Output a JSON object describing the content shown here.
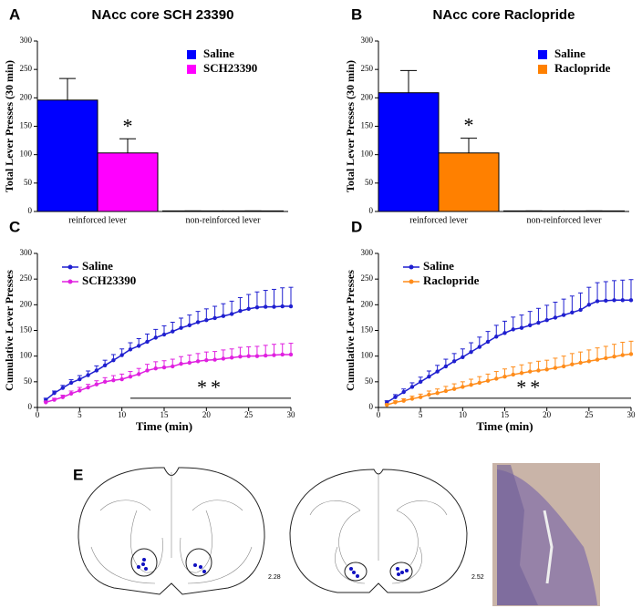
{
  "chart_data": [
    {
      "type": "bar",
      "panel": "A",
      "title": "NAcc core SCH 23390",
      "ylabel": "Total Lever Presses (30 min)",
      "categories": [
        "reinforced lever",
        "non-reinforced lever"
      ],
      "series": [
        {
          "name": "Saline",
          "color": "#0000ff",
          "values": [
            196,
            1
          ],
          "errors": [
            38,
            0
          ]
        },
        {
          "name": "SCH23390",
          "color": "#ff00ff",
          "values": [
            103,
            1
          ],
          "errors": [
            25,
            0
          ]
        }
      ],
      "annotation": "*",
      "ylim": [
        0,
        300
      ],
      "yticks": [
        0,
        50,
        100,
        150,
        200,
        250,
        300
      ]
    },
    {
      "type": "bar",
      "panel": "B",
      "title": "NAcc core Raclopride",
      "ylabel": "Total Lever Presses (30 min)",
      "categories": [
        "reinforced lever",
        "non-reinforced lever"
      ],
      "series": [
        {
          "name": "Saline",
          "color": "#0000ff",
          "values": [
            209,
            1
          ],
          "errors": [
            39,
            0
          ]
        },
        {
          "name": "Raclopride",
          "color": "#ff8000",
          "values": [
            103,
            1
          ],
          "errors": [
            26,
            0
          ]
        }
      ],
      "annotation": "*",
      "ylim": [
        0,
        300
      ],
      "yticks": [
        0,
        50,
        100,
        150,
        200,
        250,
        300
      ]
    },
    {
      "type": "line",
      "panel": "C",
      "ylabel": "Cumulative Lever Presses",
      "xlabel": "Time (min)",
      "x": [
        1,
        2,
        3,
        4,
        5,
        6,
        7,
        8,
        9,
        10,
        11,
        12,
        13,
        14,
        15,
        16,
        17,
        18,
        19,
        20,
        21,
        22,
        23,
        24,
        25,
        26,
        27,
        28,
        29,
        30
      ],
      "series": [
        {
          "name": "Saline",
          "color": "#1f1fd0",
          "values": [
            15,
            28,
            38,
            48,
            55,
            63,
            72,
            82,
            92,
            102,
            113,
            120,
            128,
            136,
            142,
            148,
            155,
            160,
            166,
            170,
            174,
            178,
            182,
            188,
            192,
            195,
            196,
            196,
            197,
            197
          ],
          "errors": [
            3,
            4,
            5,
            6,
            7,
            8,
            9,
            10,
            11,
            12,
            13,
            14,
            15,
            16,
            17,
            18,
            19,
            20,
            21,
            22,
            23,
            24,
            25,
            26,
            28,
            30,
            32,
            34,
            36,
            37
          ]
        },
        {
          "name": "SCH23390",
          "color": "#e020e0",
          "values": [
            10,
            15,
            20,
            27,
            33,
            39,
            45,
            50,
            53,
            55,
            60,
            65,
            72,
            76,
            78,
            80,
            85,
            87,
            90,
            92,
            93,
            95,
            97,
            99,
            100,
            100,
            101,
            102,
            103,
            103
          ],
          "errors": [
            2,
            3,
            4,
            5,
            6,
            6,
            7,
            8,
            9,
            10,
            10,
            11,
            12,
            13,
            13,
            14,
            14,
            15,
            15,
            16,
            16,
            17,
            17,
            18,
            18,
            19,
            20,
            21,
            21,
            22
          ]
        }
      ],
      "significance": {
        "label": "**",
        "x": [
          11,
          30
        ],
        "y": 18
      },
      "xlim": [
        0,
        30
      ],
      "xticks": [
        0,
        5,
        10,
        15,
        20,
        25,
        30
      ],
      "ylim": [
        0,
        300
      ],
      "yticks": [
        0,
        50,
        100,
        150,
        200,
        250,
        300
      ]
    },
    {
      "type": "line",
      "panel": "D",
      "ylabel": "Cumulative Lever Presses",
      "xlabel": "Time (min)",
      "x": [
        1,
        2,
        3,
        4,
        5,
        6,
        7,
        8,
        9,
        10,
        11,
        12,
        13,
        14,
        15,
        16,
        17,
        18,
        19,
        20,
        21,
        22,
        23,
        24,
        25,
        26,
        27,
        28,
        29,
        30
      ],
      "series": [
        {
          "name": "Saline",
          "color": "#1f1fd0",
          "values": [
            10,
            20,
            30,
            40,
            50,
            60,
            70,
            80,
            90,
            98,
            108,
            118,
            128,
            138,
            145,
            152,
            155,
            160,
            165,
            170,
            175,
            180,
            185,
            190,
            200,
            207,
            208,
            209,
            209,
            209
          ],
          "errors": [
            3,
            5,
            6,
            8,
            9,
            11,
            12,
            14,
            15,
            16,
            18,
            19,
            20,
            22,
            23,
            24,
            25,
            27,
            28,
            29,
            30,
            31,
            32,
            33,
            34,
            36,
            37,
            38,
            39,
            40
          ]
        },
        {
          "name": "Raclopride",
          "color": "#ff8c1a",
          "values": [
            5,
            10,
            13,
            17,
            20,
            25,
            28,
            32,
            36,
            40,
            44,
            48,
            52,
            56,
            60,
            64,
            67,
            70,
            72,
            74,
            77,
            80,
            84,
            87,
            90,
            93,
            96,
            99,
            102,
            104
          ],
          "errors": [
            2,
            3,
            4,
            5,
            6,
            7,
            8,
            9,
            10,
            10,
            11,
            12,
            13,
            14,
            15,
            15,
            16,
            17,
            18,
            18,
            19,
            20,
            21,
            21,
            22,
            23,
            23,
            24,
            25,
            25
          ]
        }
      ],
      "significance": {
        "label": "**",
        "x": [
          6,
          30
        ],
        "y": 18
      },
      "xlim": [
        0,
        30
      ],
      "xticks": [
        0,
        5,
        10,
        15,
        20,
        25,
        30
      ],
      "ylim": [
        0,
        300
      ],
      "yticks": [
        0,
        50,
        100,
        150,
        200,
        250,
        300
      ]
    }
  ],
  "diagram": {
    "panel": "E",
    "labels": [
      "2.28",
      "2.52"
    ]
  }
}
